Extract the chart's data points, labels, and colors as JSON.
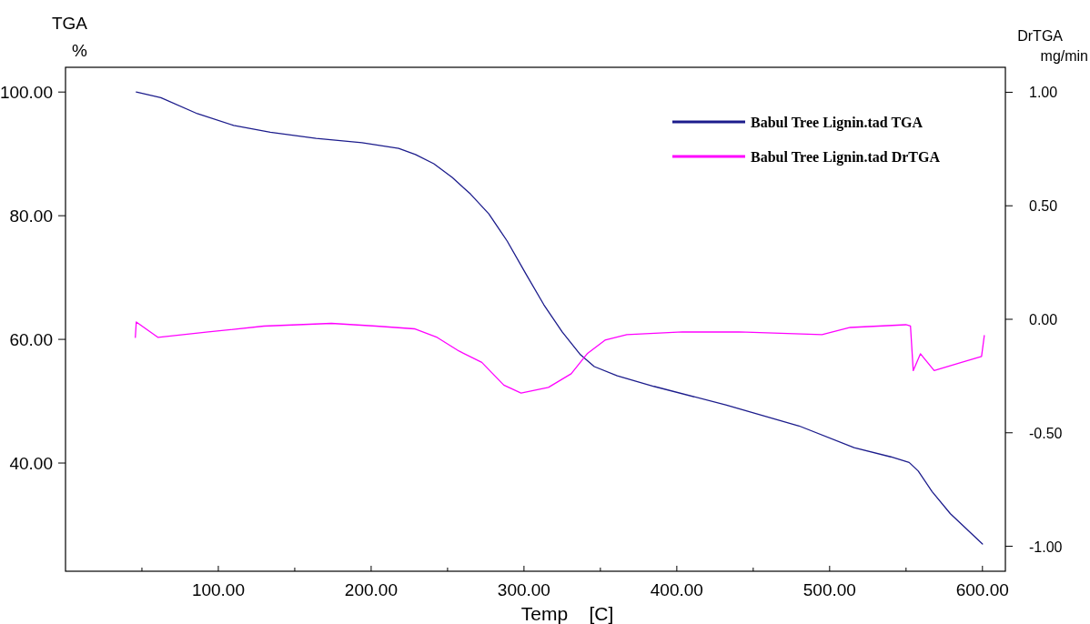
{
  "chart_data": {
    "type": "line",
    "xlabel": "Temp    [C]",
    "ylabel": "TGA\n%",
    "y2label": "DrTGA\nmg/min",
    "xlim": [
      0,
      615
    ],
    "xticks": [
      {
        "value": 50,
        "label": null
      },
      {
        "value": 100,
        "label": "100.00"
      },
      {
        "value": 150,
        "label": null
      },
      {
        "value": 200,
        "label": "200.00"
      },
      {
        "value": 250,
        "label": null
      },
      {
        "value": 300,
        "label": "300.00"
      },
      {
        "value": 350,
        "label": null
      },
      {
        "value": 400,
        "label": "400.00"
      },
      {
        "value": 450,
        "label": null
      },
      {
        "value": 500,
        "label": "500.00"
      },
      {
        "value": 550,
        "label": null
      },
      {
        "value": 600,
        "label": "600.00"
      }
    ],
    "ylim": [
      22.5,
      104
    ],
    "yticks": [
      {
        "value": 40,
        "label": "40.00"
      },
      {
        "value": 60,
        "label": "60.00"
      },
      {
        "value": 80,
        "label": "80.00"
      },
      {
        "value": 100,
        "label": "100.00"
      }
    ],
    "y2lim": [
      -1.11,
      1.11
    ],
    "y2ticks": [
      {
        "value": -1,
        "label": "-1.00"
      },
      {
        "value": -0.5,
        "label": "-0.50"
      },
      {
        "value": 0,
        "label": "0.00"
      },
      {
        "value": 0.5,
        "label": "0.50"
      },
      {
        "value": 1,
        "label": "1.00"
      }
    ],
    "grid": false,
    "legend": "top right",
    "series": [
      {
        "name": "Babul Tree Lignin.tad TGA",
        "color": "#1c1c8c",
        "x": [
          46.3,
          62.4,
          86.3,
          110,
          134,
          164,
          194,
          218,
          229,
          241,
          253,
          265,
          277,
          289,
          301,
          313,
          325,
          337,
          346,
          361,
          385,
          432,
          480,
          516,
          540,
          552,
          558,
          567,
          579,
          600
        ],
        "values": [
          100,
          99.1,
          96.5,
          94.6,
          93.5,
          92.5,
          91.8,
          90.9,
          89.9,
          88.4,
          86.2,
          83.5,
          80.3,
          75.9,
          70.7,
          65.6,
          61.2,
          57.5,
          55.6,
          54.1,
          52.4,
          49.4,
          46.0,
          42.5,
          41.0,
          40.1,
          38.7,
          35.4,
          31.8,
          26.9
        ]
      },
      {
        "name": "Babul Tree Lignin.tad DrTGA",
        "color": "#ff00ff",
        "axis": "y2",
        "x": [
          45.7,
          46.3,
          60.6,
          93.4,
          129.8,
          174,
          203.2,
          228.3,
          243.2,
          257.5,
          272.4,
          286.8,
          298.1,
          316,
          330.9,
          341.6,
          353,
          367.3,
          403.7,
          440.7,
          495,
          513.5,
          549.9,
          552.9,
          554.7,
          559.4,
          568.4,
          586.3,
          599.4,
          601.2
        ],
        "values": [
          -0.08,
          -0.012,
          -0.08,
          -0.056,
          -0.03,
          -0.018,
          -0.03,
          -0.042,
          -0.08,
          -0.14,
          -0.19,
          -0.29,
          -0.325,
          -0.3,
          -0.24,
          -0.15,
          -0.092,
          -0.068,
          -0.056,
          -0.056,
          -0.068,
          -0.036,
          -0.024,
          -0.03,
          -0.226,
          -0.152,
          -0.226,
          -0.19,
          -0.164,
          -0.072
        ]
      }
    ]
  }
}
